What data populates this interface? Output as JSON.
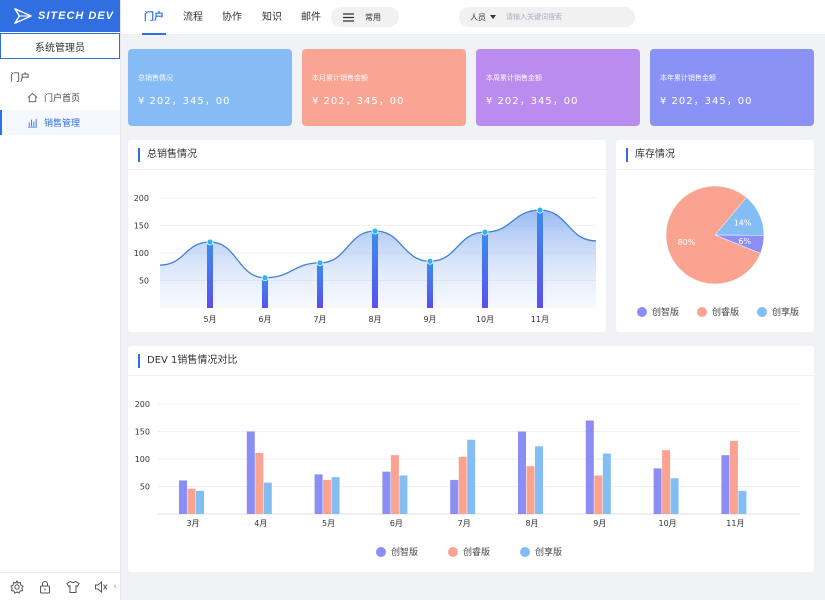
{
  "app": {
    "logo_text": "SITECH DEV",
    "role": "系统管理员"
  },
  "sidebar": {
    "section": "门户",
    "items": [
      {
        "label": "门户首页",
        "icon": "home-icon"
      },
      {
        "label": "销售管理",
        "icon": "chart-icon"
      }
    ],
    "bottom_icons": [
      "gear-icon",
      "lock-icon",
      "shirt-icon",
      "speaker-icon"
    ],
    "collapse_glyph": "‹"
  },
  "topbar": {
    "tabs": [
      "门户",
      "流程",
      "协作",
      "知识",
      "邮件"
    ],
    "active_tab": "门户",
    "common_label": "常用",
    "search": {
      "scope": "人员",
      "placeholder": "请输入关键词搜索"
    }
  },
  "stats": [
    {
      "label": "总销售情况",
      "value": "¥ 202，345，00",
      "color": "#86bcf5"
    },
    {
      "label": "本月累计销售金额",
      "value": "¥ 202，345，00",
      "color": "#faa593"
    },
    {
      "label": "本周累计销售金额",
      "value": "¥ 202，345，00",
      "color": "#bb8cf0"
    },
    {
      "label": "本年累计销售金额",
      "value": "¥ 202，345，00",
      "color": "#8a93f5"
    }
  ],
  "colors": {
    "accent": "#2f6fe0",
    "series": [
      "#8b8ff5",
      "#fba391",
      "#84bdf4"
    ]
  },
  "chart_data": [
    {
      "type": "area",
      "title": "总销售情况",
      "categories": [
        "5月",
        "6月",
        "7月",
        "8月",
        "9月",
        "10月",
        "11月"
      ],
      "values": [
        120,
        55,
        82,
        140,
        85,
        138,
        178
      ],
      "start_value": 78,
      "end_value": 122,
      "yticks": [
        50,
        100,
        150,
        200
      ],
      "ylim": [
        0,
        200
      ]
    },
    {
      "type": "pie",
      "title": "库存情况",
      "slices": [
        {
          "name": "创智版",
          "value": 6,
          "label": "6%"
        },
        {
          "name": "创睿版",
          "value": 80,
          "label": "80%"
        },
        {
          "name": "创享版",
          "value": 14,
          "label": "14%"
        }
      ],
      "legend_position": "bottom"
    },
    {
      "type": "bar",
      "title": "DEV 1销售情况对比",
      "categories": [
        "3月",
        "4月",
        "5月",
        "6月",
        "7月",
        "8月",
        "9月",
        "10月",
        "11月"
      ],
      "series": [
        {
          "name": "创智版",
          "values": [
            61,
            150,
            72,
            77,
            62,
            150,
            170,
            83,
            107
          ]
        },
        {
          "name": "创睿版",
          "values": [
            46,
            111,
            62,
            107,
            104,
            87,
            70,
            116,
            133
          ]
        },
        {
          "name": "创享版",
          "values": [
            42,
            57,
            67,
            70,
            135,
            123,
            110,
            65,
            42
          ]
        }
      ],
      "yticks": [
        50,
        100,
        150,
        200
      ],
      "ylim": [
        0,
        200
      ],
      "legend_position": "bottom"
    }
  ]
}
